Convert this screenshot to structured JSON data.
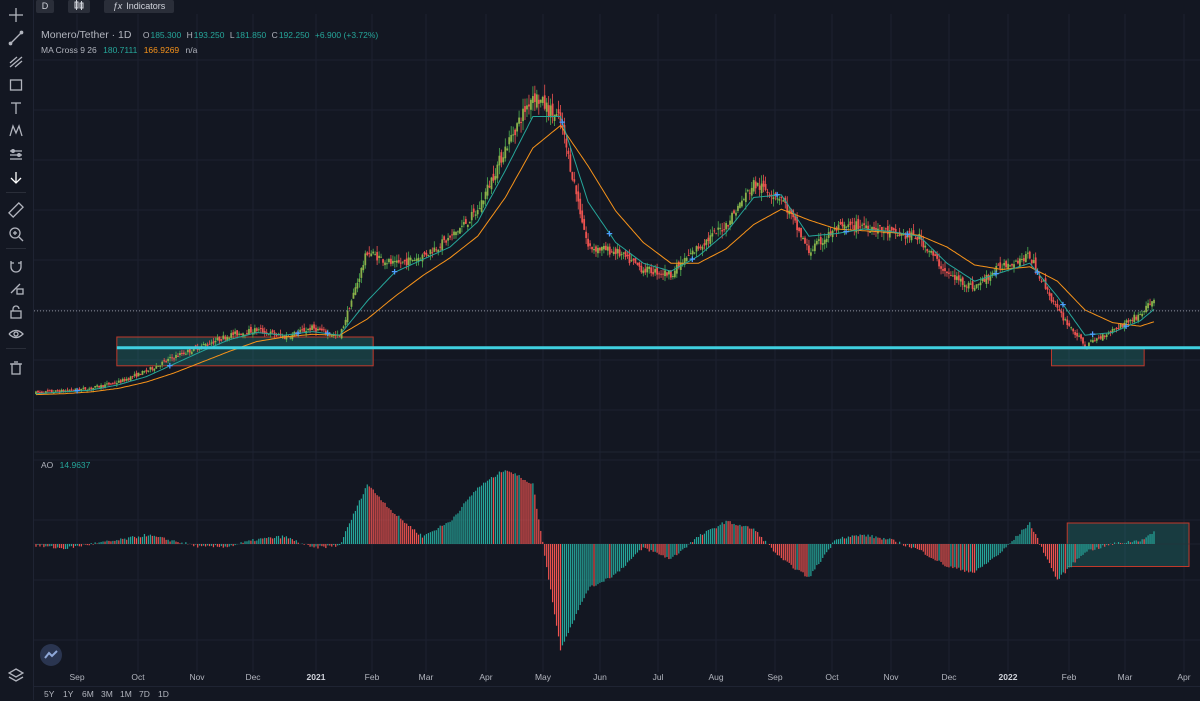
{
  "toolbar": {
    "interval": "D",
    "chart_type_icon": "candles-icon",
    "indicators_label": "Indicators",
    "indicators_icon": "fx-icon"
  },
  "sidebar": {
    "items": [
      {
        "name": "crosshair-icon"
      },
      {
        "name": "trend-line-icon"
      },
      {
        "name": "fib-tools-icon"
      },
      {
        "name": "rectangle-icon"
      },
      {
        "name": "text-icon"
      },
      {
        "name": "pattern-icon"
      },
      {
        "name": "prediction-icon"
      },
      {
        "name": "arrow-down-icon"
      },
      {
        "name": "ruler-icon"
      },
      {
        "name": "zoom-in-icon"
      },
      {
        "name": "magnet-icon"
      },
      {
        "name": "lock-drawing-icon"
      },
      {
        "name": "lock-icon"
      },
      {
        "name": "eye-icon"
      },
      {
        "name": "trash-icon"
      },
      {
        "name": "layers-icon"
      }
    ]
  },
  "legend": {
    "symbol": "Monero/Tether · 1D",
    "o_label": "O",
    "o_value": "185.300",
    "h_label": "H",
    "h_value": "193.250",
    "l_label": "L",
    "l_value": "181.850",
    "c_label": "C",
    "c_value": "192.250",
    "change": "+6.900 (+3.72%)",
    "ma_label": "MA Cross 9 26",
    "ma_fast": "180.7111",
    "ma_slow": "166.9269",
    "ma_cross": "n/a",
    "ao_label": "AO",
    "ao_value": "14.9637"
  },
  "xaxis": {
    "labels": [
      "Sep",
      "Oct",
      "Nov",
      "Dec",
      "2021",
      "Feb",
      "Mar",
      "Apr",
      "May",
      "Jun",
      "Jul",
      "Aug",
      "Sep",
      "Oct",
      "Nov",
      "Dec",
      "2022",
      "Feb",
      "Mar",
      "Apr"
    ]
  },
  "ranges": [
    "5Y",
    "1Y",
    "6M",
    "3M",
    "1M",
    "7D",
    "1D"
  ],
  "colors": {
    "background": "#131722",
    "up": "#26a69a",
    "down": "#ef5350",
    "candle_up": "#4caf50",
    "candle_down": "#ef5350",
    "ma_fast": "#26a69a",
    "ma_slow": "#f7931a",
    "support_line": "#3fd0e0",
    "box": "#c0392b"
  },
  "chart_data": {
    "type": "candlestick",
    "title": "Monero/Tether · 1D",
    "x": [
      "2020-08-25",
      "2020-09-08",
      "2020-09-22",
      "2020-10-06",
      "2020-10-20",
      "2020-11-03",
      "2020-11-17",
      "2020-12-01",
      "2020-12-15",
      "2020-12-29",
      "2021-01-12",
      "2021-01-26",
      "2021-02-09",
      "2021-02-23",
      "2021-03-09",
      "2021-03-23",
      "2021-04-06",
      "2021-04-20",
      "2021-05-04",
      "2021-05-18",
      "2021-06-01",
      "2021-06-15",
      "2021-06-29",
      "2021-07-13",
      "2021-07-27",
      "2021-08-10",
      "2021-08-24",
      "2021-09-07",
      "2021-09-21",
      "2021-10-05",
      "2021-10-19",
      "2021-11-02",
      "2021-11-16",
      "2021-11-30",
      "2021-12-14",
      "2021-12-28",
      "2022-01-11",
      "2022-01-25",
      "2022-02-08",
      "2022-02-22",
      "2022-03-08",
      "2022-03-15"
    ],
    "series": [
      {
        "values": [
          88,
          90,
          93,
          100,
          112,
          128,
          140,
          152,
          158,
          150,
          160,
          150,
          245,
          230,
          240,
          260,
          290,
          360,
          420,
          390,
          250,
          245,
          225,
          220,
          250,
          275,
          320,
          305,
          245,
          270,
          275,
          265,
          260,
          220,
          205,
          230,
          240,
          180,
          140,
          158,
          175,
          192.25
        ]
      },
      {
        "name": "MA 9",
        "values": [
          87,
          89,
          91,
          97,
          106,
          120,
          134,
          147,
          155,
          152,
          156,
          152,
          190,
          222,
          236,
          250,
          278,
          335,
          395,
          395,
          300,
          255,
          232,
          223,
          240,
          266,
          305,
          308,
          262,
          265,
          270,
          267,
          262,
          232,
          212,
          222,
          232,
          195,
          152,
          155,
          168,
          180.71
        ]
      },
      {
        "name": "MA 26",
        "values": [
          86,
          87,
          89,
          93,
          100,
          110,
          122,
          134,
          145,
          150,
          153,
          152,
          170,
          195,
          218,
          238,
          262,
          305,
          360,
          385,
          340,
          290,
          255,
          232,
          232,
          248,
          275,
          292,
          280,
          270,
          268,
          266,
          263,
          250,
          230,
          225,
          228,
          212,
          180,
          166,
          162,
          166.93
        ]
      },
      {
        "name": "AO",
        "values": [
          -2,
          -6,
          0,
          5,
          12,
          4,
          -4,
          -3,
          6,
          10,
          -5,
          -2,
          80,
          40,
          10,
          30,
          75,
          100,
          80,
          -140,
          -60,
          -40,
          -5,
          -20,
          10,
          30,
          20,
          -20,
          -45,
          8,
          12,
          5,
          -8,
          -30,
          -38,
          -10,
          28,
          -48,
          -10,
          0,
          5,
          14.96
        ]
      }
    ],
    "ylabel": "",
    "xlabel": "",
    "horizontal_line": 179,
    "support_line": 138,
    "grid": true
  }
}
